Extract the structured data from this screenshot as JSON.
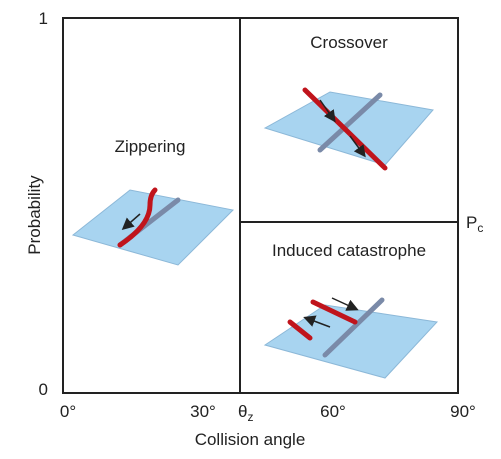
{
  "y_axis": {
    "label": "Probability",
    "ticks": [
      "1",
      "0"
    ]
  },
  "x_axis": {
    "label": "Collision angle",
    "ticks": [
      "0°",
      "30°",
      "60°",
      "90°"
    ],
    "critical": {
      "main": "θ",
      "sub": "z"
    }
  },
  "threshold": {
    "main": "P",
    "sub": "c"
  },
  "regions": [
    "Zippering",
    "Crossover",
    "Induced catastrophe"
  ]
}
